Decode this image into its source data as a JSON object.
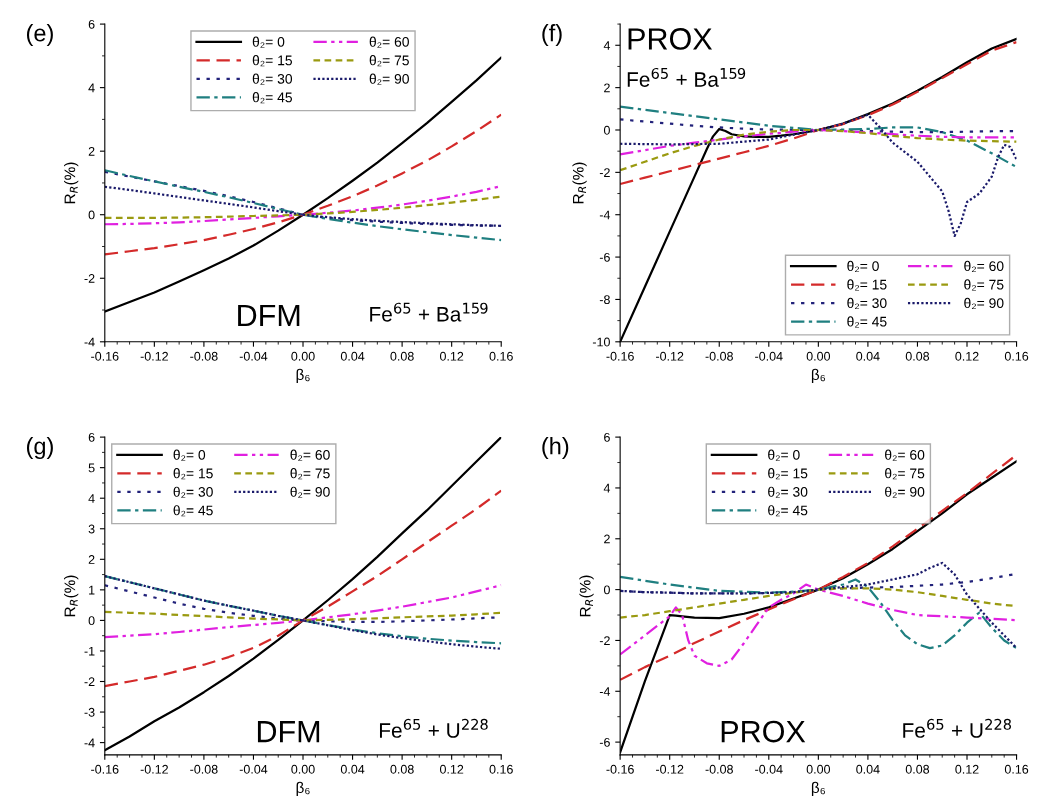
{
  "chart_data": [
    {
      "type": "line",
      "xlabel": "β₆",
      "ylabel": "R$_{R}$(%)",
      "annotations": [
        "(e)",
        "DFM",
        "Fe$^{65}$ + Ba$^{159}$"
      ],
      "legend": "top",
      "grid": false,
      "x": [
        -0.16,
        -0.14,
        -0.12,
        -0.1,
        -0.08,
        -0.06,
        -0.04,
        -0.02,
        0,
        0.02,
        0.04,
        0.06,
        0.08,
        0.1,
        0.12,
        0.14,
        0.16
      ],
      "xlim": [
        -0.16,
        0.16
      ],
      "xticks": [
        {
          "value": -0.16,
          "label": "-0.16"
        },
        {
          "value": -0.12,
          "label": "-0.12"
        },
        {
          "value": -0.08,
          "label": "-0.08"
        },
        {
          "value": -0.04,
          "label": "-0.04"
        },
        {
          "value": 0,
          "label": "0.00"
        },
        {
          "value": 0.04,
          "label": "0.04"
        },
        {
          "value": 0.08,
          "label": "0.08"
        },
        {
          "value": 0.12,
          "label": "0.12"
        },
        {
          "value": 0.16,
          "label": "0.16"
        }
      ],
      "ylim": [
        -4,
        6
      ],
      "yticks": [
        -4,
        -2,
        0,
        2,
        4,
        6
      ],
      "series": [
        {
          "name": "θ₂= 0",
          "color": "#000000",
          "line_style": "solid",
          "values": [
            -3.05,
            -2.75,
            -2.45,
            -2.1,
            -1.75,
            -1.38,
            -0.97,
            -0.5,
            0,
            0.52,
            1.07,
            1.64,
            2.25,
            2.88,
            3.55,
            4.23,
            4.95
          ]
        },
        {
          "name": "θ₂= 15",
          "color": "#d42a2a",
          "line_style": "dashed",
          "values": [
            -1.25,
            -1.15,
            -1.05,
            -0.93,
            -0.8,
            -0.63,
            -0.45,
            -0.24,
            0,
            0.28,
            0.58,
            0.92,
            1.3,
            1.7,
            2.15,
            2.63,
            3.15
          ]
        },
        {
          "name": "θ₂= 30",
          "color": "#22227a",
          "line_style": "dotted",
          "values": [
            1.35,
            1.2,
            1.05,
            0.9,
            0.75,
            0.58,
            0.4,
            0.2,
            0,
            -0.1,
            -0.17,
            -0.22,
            -0.26,
            -0.29,
            -0.32,
            -0.34,
            -0.35
          ]
        },
        {
          "name": "θ₂= 45",
          "color": "#1f7f80",
          "line_style": "dashdot",
          "values": [
            1.4,
            1.22,
            1.05,
            0.88,
            0.72,
            0.55,
            0.37,
            0.18,
            0,
            -0.13,
            -0.25,
            -0.36,
            -0.46,
            -0.55,
            -0.64,
            -0.72,
            -0.8
          ]
        },
        {
          "name": "θ₂= 60",
          "color": "#e020e0",
          "line_style": "dashdotdot",
          "values": [
            -0.3,
            -0.29,
            -0.27,
            -0.24,
            -0.2,
            -0.15,
            -0.1,
            -0.05,
            0,
            0.06,
            0.13,
            0.22,
            0.32,
            0.44,
            0.57,
            0.72,
            0.9
          ]
        },
        {
          "name": "θ₂= 75",
          "color": "#9a9a10",
          "line_style": "shortdash",
          "values": [
            -0.1,
            -0.1,
            -0.1,
            -0.09,
            -0.08,
            -0.06,
            -0.04,
            -0.02,
            0,
            0.04,
            0.09,
            0.15,
            0.22,
            0.3,
            0.38,
            0.47,
            0.57
          ]
        },
        {
          "name": "θ₂= 90",
          "color": "#1a1a6a",
          "line_style": "densedot",
          "values": [
            0.88,
            0.78,
            0.67,
            0.56,
            0.45,
            0.34,
            0.23,
            0.11,
            0,
            -0.08,
            -0.14,
            -0.19,
            -0.23,
            -0.27,
            -0.3,
            -0.33,
            -0.35
          ]
        }
      ]
    },
    {
      "type": "line",
      "xlabel": "β₆",
      "ylabel": "R$_{R}$(%)",
      "annotations": [
        "(f)",
        "PROX",
        "Fe$^{65}$ + Ba$^{159}$"
      ],
      "legend": "bottom right",
      "grid": false,
      "x": [
        -0.16,
        -0.14,
        -0.12,
        -0.1,
        -0.08,
        -0.06,
        -0.04,
        -0.02,
        0,
        0.02,
        0.04,
        0.06,
        0.08,
        0.1,
        0.12,
        0.14,
        0.16
      ],
      "xlim": [
        -0.16,
        0.16
      ],
      "xticks": [
        {
          "value": -0.16,
          "label": "-0.16"
        },
        {
          "value": -0.12,
          "label": "-0.12"
        },
        {
          "value": -0.08,
          "label": "-0.08"
        },
        {
          "value": -0.04,
          "label": "-0.04"
        },
        {
          "value": 0,
          "label": "0.00"
        },
        {
          "value": 0.04,
          "label": "0.04"
        },
        {
          "value": 0.08,
          "label": "0.08"
        },
        {
          "value": 0.12,
          "label": "0.12"
        },
        {
          "value": 0.16,
          "label": "0.16"
        }
      ],
      "ylim": [
        -10,
        5
      ],
      "yticks": [
        -10,
        -8,
        -6,
        -4,
        -2,
        0,
        2,
        4
      ],
      "series": [
        {
          "name": "θ₂= 0",
          "color": "#000000",
          "line_style": "solid",
          "x": [
            -0.16,
            -0.14,
            -0.12,
            -0.1,
            -0.09,
            -0.085,
            -0.08,
            -0.075,
            -0.07,
            -0.06,
            -0.05,
            -0.04,
            -0.03,
            -0.02,
            -0.01,
            0,
            0.02,
            0.04,
            0.06,
            0.08,
            0.1,
            0.12,
            0.14,
            0.16
          ],
          "values": [
            -10,
            -7.4,
            -4.8,
            -2.2,
            -0.9,
            -0.3,
            0.05,
            -0.05,
            -0.2,
            -0.3,
            -0.33,
            -0.32,
            -0.27,
            -0.2,
            -0.1,
            0,
            0.3,
            0.75,
            1.25,
            1.85,
            2.5,
            3.2,
            3.85,
            4.3
          ]
        },
        {
          "name": "θ₂= 15",
          "color": "#d42a2a",
          "line_style": "dashed",
          "values": [
            -2.55,
            -2.25,
            -1.95,
            -1.65,
            -1.35,
            -1.05,
            -0.75,
            -0.4,
            0,
            0.28,
            0.7,
            1.2,
            1.8,
            2.45,
            3.1,
            3.75,
            4.15
          ]
        },
        {
          "name": "θ₂= 30",
          "color": "#22227a",
          "line_style": "dotted",
          "values": [
            0.5,
            0.4,
            0.3,
            0.2,
            0.12,
            0.06,
            0.02,
            0.01,
            0,
            -0.02,
            -0.05,
            -0.08,
            -0.1,
            -0.1,
            -0.08,
            -0.06,
            -0.05
          ]
        },
        {
          "name": "θ₂= 45",
          "color": "#1f7f80",
          "line_style": "dashdot",
          "values": [
            1.1,
            0.95,
            0.8,
            0.65,
            0.5,
            0.35,
            0.2,
            0.1,
            0,
            0.02,
            0.05,
            0.12,
            0.12,
            -0.1,
            -0.5,
            -1.1,
            -1.75
          ]
        },
        {
          "name": "θ₂= 60",
          "color": "#e020e0",
          "line_style": "dashdotdot",
          "values": [
            -1.15,
            -0.95,
            -0.75,
            -0.6,
            -0.45,
            -0.3,
            -0.18,
            -0.08,
            0,
            -0.05,
            -0.12,
            -0.2,
            -0.27,
            -0.32,
            -0.35,
            -0.35,
            -0.35
          ]
        },
        {
          "name": "θ₂= 75",
          "color": "#9a9a10",
          "line_style": "shortdash",
          "values": [
            -1.9,
            -1.5,
            -1.1,
            -0.75,
            -0.45,
            -0.22,
            -0.08,
            0,
            0,
            -0.05,
            -0.15,
            -0.28,
            -0.38,
            -0.45,
            -0.5,
            -0.53,
            -0.55
          ]
        },
        {
          "name": "θ₂= 90",
          "color": "#1a1a6a",
          "line_style": "densedot",
          "x": [
            -0.16,
            -0.12,
            -0.08,
            -0.06,
            -0.04,
            -0.02,
            0,
            0.02,
            0.04,
            0.05,
            0.06,
            0.08,
            0.09,
            0.1,
            0.105,
            0.11,
            0.115,
            0.12,
            0.13,
            0.14,
            0.145,
            0.15,
            0.155,
            0.16
          ],
          "values": [
            -0.65,
            -0.68,
            -0.65,
            -0.55,
            -0.45,
            -0.22,
            0,
            0.3,
            0.72,
            0.1,
            -0.6,
            -1.5,
            -2.2,
            -2.9,
            -3.8,
            -5.0,
            -4.4,
            -3.4,
            -3.0,
            -2.2,
            -1.3,
            -0.7,
            -0.8,
            -1.4
          ]
        }
      ]
    },
    {
      "type": "line",
      "xlabel": "β₆",
      "ylabel": "R$_{R}$(%)",
      "annotations": [
        "(g)",
        "DFM",
        "Fe$^{65}$ + U$^{228}$"
      ],
      "legend": "top left",
      "grid": false,
      "x": [
        -0.16,
        -0.14,
        -0.12,
        -0.1,
        -0.08,
        -0.06,
        -0.04,
        -0.02,
        0,
        0.02,
        0.04,
        0.06,
        0.08,
        0.1,
        0.12,
        0.14,
        0.16
      ],
      "xlim": [
        -0.16,
        0.16
      ],
      "xticks": [
        {
          "value": -0.16,
          "label": "-0.16"
        },
        {
          "value": -0.12,
          "label": "-0.12"
        },
        {
          "value": -0.08,
          "label": "-0.08"
        },
        {
          "value": -0.04,
          "label": "-0.04"
        },
        {
          "value": 0,
          "label": "0.00"
        },
        {
          "value": 0.04,
          "label": "0.04"
        },
        {
          "value": 0.08,
          "label": "0.08"
        },
        {
          "value": 0.12,
          "label": "0.12"
        },
        {
          "value": 0.16,
          "label": "0.16"
        }
      ],
      "ylim": [
        -4.4,
        6
      ],
      "yticks": [
        -4,
        -3,
        -2,
        -1,
        0,
        1,
        2,
        3,
        4,
        5,
        6
      ],
      "series": [
        {
          "name": "θ₂= 0",
          "color": "#000000",
          "line_style": "solid",
          "values": [
            -4.25,
            -3.8,
            -3.3,
            -2.85,
            -2.35,
            -1.82,
            -1.25,
            -0.64,
            0,
            0.66,
            1.35,
            2.08,
            2.85,
            3.6,
            4.4,
            5.2,
            6.0
          ]
        },
        {
          "name": "θ₂= 15",
          "color": "#d42a2a",
          "line_style": "dashed",
          "values": [
            -2.15,
            -2.0,
            -1.85,
            -1.65,
            -1.45,
            -1.2,
            -0.9,
            -0.5,
            0,
            0.45,
            0.95,
            1.45,
            2.0,
            2.55,
            3.1,
            3.65,
            4.25
          ]
        },
        {
          "name": "θ₂= 30",
          "color": "#22227a",
          "line_style": "dotted",
          "values": [
            1.15,
            0.95,
            0.75,
            0.55,
            0.38,
            0.25,
            0.15,
            0.06,
            0,
            -0.03,
            -0.05,
            -0.05,
            -0.03,
            0,
            0.03,
            0.07,
            0.1
          ]
        },
        {
          "name": "θ₂= 45",
          "color": "#1f7f80",
          "line_style": "dashdot",
          "values": [
            1.45,
            1.25,
            1.05,
            0.85,
            0.65,
            0.48,
            0.32,
            0.15,
            0,
            -0.15,
            -0.3,
            -0.42,
            -0.52,
            -0.6,
            -0.66,
            -0.71,
            -0.75
          ]
        },
        {
          "name": "θ₂= 60",
          "color": "#e020e0",
          "line_style": "dashdotdot",
          "values": [
            -0.55,
            -0.5,
            -0.45,
            -0.38,
            -0.3,
            -0.22,
            -0.15,
            -0.08,
            0,
            0.1,
            0.2,
            0.32,
            0.45,
            0.6,
            0.75,
            0.95,
            1.15
          ]
        },
        {
          "name": "θ₂= 75",
          "color": "#9a9a10",
          "line_style": "shortdash",
          "values": [
            0.28,
            0.25,
            0.22,
            0.18,
            0.14,
            0.1,
            0.06,
            0.03,
            0,
            0.02,
            0.04,
            0.07,
            0.1,
            0.13,
            0.16,
            0.2,
            0.25
          ]
        },
        {
          "name": "θ₂= 90",
          "color": "#1a1a6a",
          "line_style": "densedot",
          "values": [
            1.45,
            1.25,
            1.05,
            0.85,
            0.65,
            0.48,
            0.32,
            0.15,
            0,
            -0.16,
            -0.32,
            -0.46,
            -0.58,
            -0.68,
            -0.78,
            -0.86,
            -0.93
          ]
        }
      ]
    },
    {
      "type": "line",
      "xlabel": "β₆",
      "ylabel": "R$_{R}$(%)",
      "annotations": [
        "(h)",
        "PROX",
        "Fe$^{65}$ + U$^{228}$"
      ],
      "legend": "top",
      "grid": false,
      "x": [
        -0.16,
        -0.14,
        -0.12,
        -0.1,
        -0.08,
        -0.06,
        -0.04,
        -0.02,
        0,
        0.02,
        0.04,
        0.06,
        0.08,
        0.1,
        0.12,
        0.14,
        0.16
      ],
      "xlim": [
        -0.16,
        0.16
      ],
      "xticks": [
        {
          "value": -0.16,
          "label": "-0.16"
        },
        {
          "value": -0.12,
          "label": "-0.12"
        },
        {
          "value": -0.08,
          "label": "-0.08"
        },
        {
          "value": -0.04,
          "label": "-0.04"
        },
        {
          "value": 0,
          "label": "0.00"
        },
        {
          "value": 0.04,
          "label": "0.04"
        },
        {
          "value": 0.08,
          "label": "0.08"
        },
        {
          "value": 0.12,
          "label": "0.12"
        },
        {
          "value": 0.16,
          "label": "0.16"
        }
      ],
      "ylim": [
        -6.5,
        6
      ],
      "yticks": [
        -6,
        -4,
        -2,
        0,
        2,
        4,
        6
      ],
      "series": [
        {
          "name": "θ₂= 0",
          "color": "#000000",
          "line_style": "solid",
          "x": [
            -0.16,
            -0.14,
            -0.12,
            -0.115,
            -0.11,
            -0.1,
            -0.08,
            -0.06,
            -0.04,
            -0.02,
            0,
            0.02,
            0.04,
            0.06,
            0.08,
            0.1,
            0.12,
            0.14,
            0.16
          ],
          "values": [
            -6.4,
            -3.6,
            -1.0,
            -1.02,
            -1.05,
            -1.1,
            -1.12,
            -0.95,
            -0.7,
            -0.35,
            0,
            0.45,
            1.0,
            1.6,
            2.3,
            3.0,
            3.75,
            4.4,
            5.05
          ]
        },
        {
          "name": "θ₂= 15",
          "color": "#d42a2a",
          "line_style": "dashed",
          "values": [
            -3.55,
            -3.05,
            -2.6,
            -2.1,
            -1.65,
            -1.2,
            -0.78,
            -0.38,
            0,
            0.5,
            1.05,
            1.7,
            2.4,
            3.1,
            3.8,
            4.55,
            5.3
          ]
        },
        {
          "name": "θ₂= 30",
          "color": "#22227a",
          "line_style": "dotted",
          "values": [
            -0.05,
            -0.1,
            -0.12,
            -0.15,
            -0.15,
            -0.15,
            -0.13,
            -0.1,
            0,
            0.05,
            0.08,
            0.1,
            0.15,
            0.2,
            0.3,
            0.45,
            0.62
          ]
        },
        {
          "name": "θ₂= 45",
          "color": "#1f7f80",
          "line_style": "dashdot",
          "x": [
            -0.16,
            -0.12,
            -0.08,
            -0.04,
            -0.02,
            0,
            0.02,
            0.03,
            0.04,
            0.05,
            0.06,
            0.07,
            0.08,
            0.09,
            0.1,
            0.11,
            0.12,
            0.13,
            0.14,
            0.15,
            0.16
          ],
          "values": [
            0.5,
            0.2,
            -0.05,
            -0.12,
            -0.08,
            0,
            0.2,
            0.4,
            0.1,
            -0.5,
            -1.2,
            -1.8,
            -2.15,
            -2.3,
            -2.2,
            -1.8,
            -1.3,
            -0.9,
            -1.5,
            -2.0,
            -2.3
          ]
        },
        {
          "name": "θ₂= 60",
          "color": "#e020e0",
          "line_style": "dashdotdot",
          "x": [
            -0.16,
            -0.14,
            -0.12,
            -0.115,
            -0.11,
            -0.105,
            -0.1,
            -0.09,
            -0.08,
            -0.07,
            -0.06,
            -0.05,
            -0.04,
            -0.03,
            -0.02,
            -0.01,
            0,
            0.02,
            0.04,
            0.06,
            0.08,
            0.1,
            0.12,
            0.14,
            0.16
          ],
          "values": [
            -2.55,
            -1.8,
            -1.05,
            -0.7,
            -1.0,
            -2.0,
            -2.6,
            -2.9,
            -3.0,
            -2.75,
            -2.1,
            -1.4,
            -0.7,
            -0.4,
            -0.15,
            0.2,
            0,
            -0.25,
            -0.55,
            -0.8,
            -1.0,
            -1.05,
            -1.1,
            -1.15,
            -1.2
          ]
        },
        {
          "name": "θ₂= 75",
          "color": "#9a9a10",
          "line_style": "shortdash",
          "values": [
            -1.1,
            -1.0,
            -0.85,
            -0.7,
            -0.55,
            -0.4,
            -0.25,
            -0.12,
            0,
            0.05,
            0.05,
            0,
            -0.1,
            -0.25,
            -0.4,
            -0.55,
            -0.65
          ]
        },
        {
          "name": "θ₂= 90",
          "color": "#1a1a6a",
          "line_style": "densedot",
          "x": [
            -0.16,
            -0.14,
            -0.12,
            -0.1,
            -0.08,
            -0.06,
            -0.04,
            -0.02,
            0,
            0.02,
            0.04,
            0.06,
            0.08,
            0.09,
            0.1,
            0.11,
            0.12,
            0.14,
            0.16
          ],
          "values": [
            -0.05,
            -0.1,
            -0.12,
            -0.15,
            -0.15,
            -0.15,
            -0.13,
            -0.1,
            0,
            0.1,
            0.2,
            0.4,
            0.6,
            0.85,
            1.05,
            0.6,
            -0.2,
            -1.3,
            -2.3
          ]
        }
      ]
    }
  ]
}
